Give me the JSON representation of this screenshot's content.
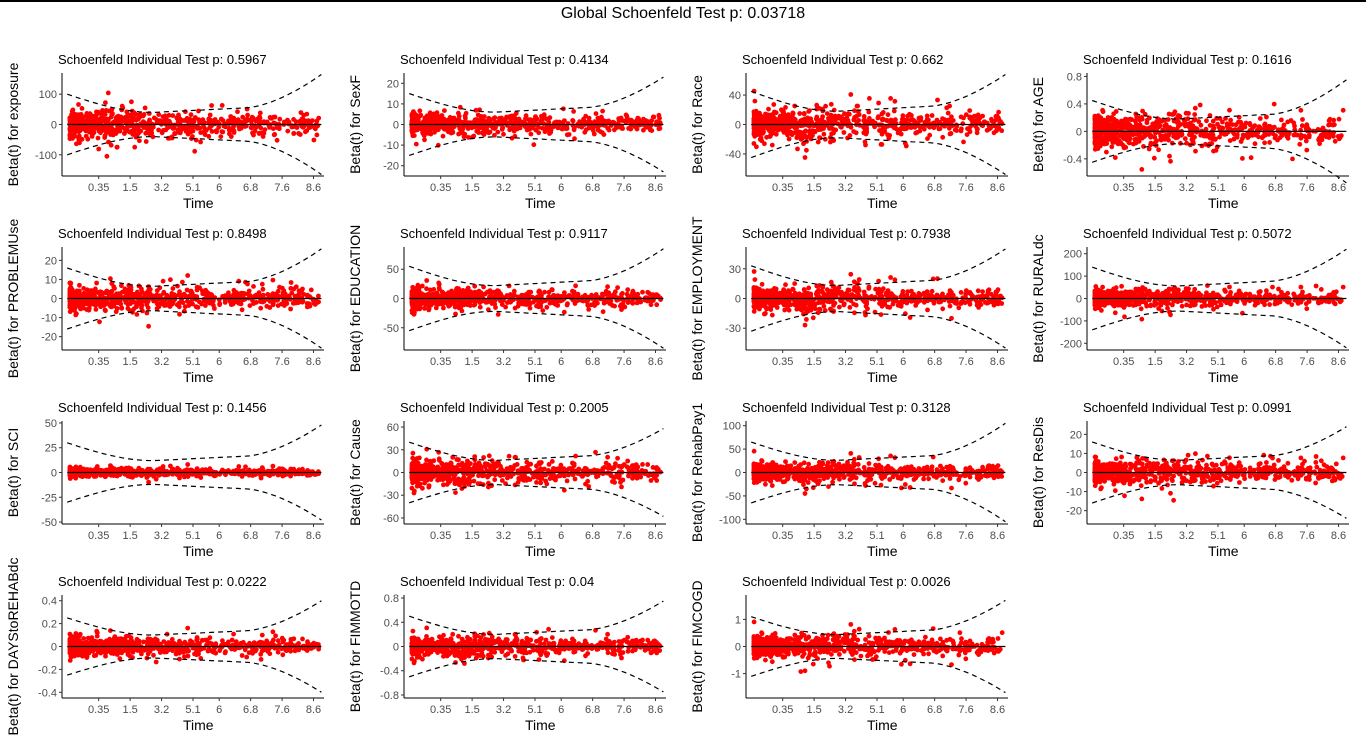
{
  "chart_data": {
    "type": "scatter",
    "title": "Global Schoenfeld Test p: 0.03718",
    "xlabel": "Time",
    "x_tick_labels": [
      "0.35",
      "1.5",
      "3.2",
      "5.1",
      "6",
      "6.8",
      "7.6",
      "8.6"
    ],
    "point_color": "#ff0000",
    "band_style": "dashed",
    "grid": false,
    "panels": [
      {
        "title": "Schoenfeld Individual Test p: 0.5967",
        "ylabel": "Beta(t) for exposure",
        "ylim": [
          -170,
          170
        ],
        "yticks": [
          -100,
          0,
          100
        ],
        "spread": 22,
        "band_start": 100,
        "band_end": 165
      },
      {
        "title": "Schoenfeld Individual Test p: 0.4134",
        "ylabel": "Beta(t) for SexF",
        "ylim": [
          -25,
          25
        ],
        "yticks": [
          -20,
          -10,
          0,
          10,
          20
        ],
        "spread": 2.5,
        "band_start": 15,
        "band_end": 23
      },
      {
        "title": "Schoenfeld Individual Test p: 0.662",
        "ylabel": "Beta(t) for Race",
        "ylim": [
          -70,
          70
        ],
        "yticks": [
          -40,
          0,
          40
        ],
        "spread": 10,
        "band_start": 45,
        "band_end": 68
      },
      {
        "title": "Schoenfeld Individual Test p: 0.1616",
        "ylabel": "Beta(t) for AGE",
        "ylim": [
          -0.65,
          0.85
        ],
        "yticks": [
          -0.4,
          0.0,
          0.4,
          0.8
        ],
        "spread": 0.12,
        "band_start": 0.45,
        "band_end": 0.75
      },
      {
        "title": "Schoenfeld Individual Test p: 0.8498",
        "ylabel": "Beta(t) for PROBLEMUse",
        "ylim": [
          -27,
          27
        ],
        "yticks": [
          -20,
          -10,
          0,
          10,
          20
        ],
        "spread": 3,
        "band_start": 16,
        "band_end": 26
      },
      {
        "title": "Schoenfeld Individual Test p: 0.9117",
        "ylabel": "Beta(t) for EDUCATION",
        "ylim": [
          -88,
          88
        ],
        "yticks": [
          -50,
          0,
          50
        ],
        "spread": 8,
        "band_start": 55,
        "band_end": 85
      },
      {
        "title": "Schoenfeld Individual Test p: 0.7938",
        "ylabel": "Beta(t) for EMPLOYMENT",
        "ylim": [
          -52,
          52
        ],
        "yticks": [
          -30,
          0,
          30
        ],
        "spread": 6,
        "band_start": 33,
        "band_end": 50
      },
      {
        "title": "Schoenfeld Individual Test p: 0.5072",
        "ylabel": "Beta(t) for RURALdc",
        "ylim": [
          -230,
          230
        ],
        "yticks": [
          -200,
          -100,
          0,
          100,
          200
        ],
        "spread": 20,
        "band_start": 140,
        "band_end": 220
      },
      {
        "title": "Schoenfeld Individual Test p: 0.1456",
        "ylabel": "Beta(t) for SCI",
        "ylim": [
          -52,
          52
        ],
        "yticks": [
          -50,
          -25,
          0,
          25,
          50
        ],
        "spread": 2,
        "band_start": 30,
        "band_end": 48
      },
      {
        "title": "Schoenfeld Individual Test p: 0.2005",
        "ylabel": "Beta(t) for Cause",
        "ylim": [
          -68,
          68
        ],
        "yticks": [
          -60,
          -30,
          0,
          30,
          60
        ],
        "spread": 8,
        "band_start": 40,
        "band_end": 58
      },
      {
        "title": "Schoenfeld Individual Test p: 0.3128",
        "ylabel": "Beta(t) for RehabPay1",
        "ylim": [
          -110,
          110
        ],
        "yticks": [
          -100,
          -50,
          0,
          50,
          100
        ],
        "spread": 10,
        "band_start": 65,
        "band_end": 105
      },
      {
        "title": "Schoenfeld Individual Test p: 0.0991",
        "ylabel": "Beta(t) for ResDis",
        "ylim": [
          -27,
          27
        ],
        "yticks": [
          -20,
          -10,
          0,
          10,
          20
        ],
        "spread": 3,
        "band_start": 16,
        "band_end": 24
      },
      {
        "title": "Schoenfeld Individual Test p: 0.0222",
        "ylabel": "Beta(t) for DAYStoREHABdc",
        "ylim": [
          -0.45,
          0.45
        ],
        "yticks": [
          -0.4,
          -0.2,
          0.0,
          0.2,
          0.4
        ],
        "spread": 0.04,
        "band_start": 0.25,
        "band_end": 0.4
      },
      {
        "title": "Schoenfeld Individual Test p: 0.04",
        "ylabel": "Beta(t) for FIMMOTD",
        "ylim": [
          -0.85,
          0.85
        ],
        "yticks": [
          -0.8,
          -0.4,
          0.0,
          0.4,
          0.8
        ],
        "spread": 0.08,
        "band_start": 0.5,
        "band_end": 0.75
      },
      {
        "title": "Schoenfeld Individual Test p: 0.0026",
        "ylabel": "Beta(t) for FIMCOGD",
        "ylim": [
          -1.9,
          1.9
        ],
        "yticks": [
          -1,
          0,
          1
        ],
        "spread": 0.2,
        "band_start": 1.1,
        "band_end": 1.7
      }
    ]
  }
}
